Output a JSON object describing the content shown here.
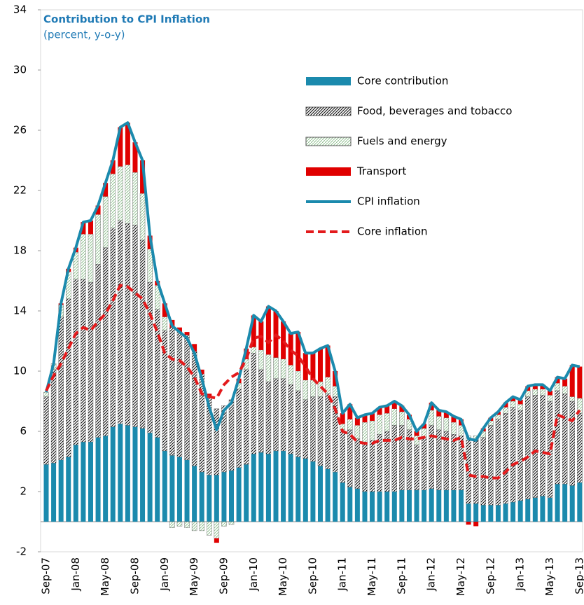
{
  "chart_data": {
    "type": "bar",
    "stacked": true,
    "title": "Contribution to CPI Inflation",
    "subtitle": "(percent, y-o-y)",
    "categories": [
      "Sep-07",
      null,
      null,
      null,
      "Jan-08",
      null,
      null,
      null,
      "May-08",
      null,
      null,
      null,
      "Sep-08",
      null,
      null,
      null,
      "Jan-09",
      null,
      null,
      null,
      "May-09",
      null,
      null,
      null,
      "Sep-09",
      null,
      null,
      null,
      "Jan-10",
      null,
      null,
      null,
      "May-10",
      null,
      null,
      null,
      "Sep-10",
      null,
      null,
      null,
      "Jan-11",
      null,
      null,
      null,
      "May-11",
      null,
      null,
      null,
      "Sep-11",
      null,
      null,
      null,
      "Jan-12",
      null,
      null,
      null,
      "May-12",
      null,
      null,
      null,
      "Sep-12",
      null,
      null,
      null,
      "Jan-13",
      null,
      null,
      null,
      "May-13",
      null,
      null,
      null,
      "Sep-13"
    ],
    "ylim": [
      -2,
      34
    ],
    "yticks": [
      -2,
      2,
      6,
      10,
      14,
      18,
      22,
      26,
      30,
      34
    ],
    "series": [
      {
        "name": "Core contribution",
        "kind": "bar",
        "color": "#1b8aad",
        "values": [
          3.8,
          3.9,
          4.1,
          4.3,
          5.1,
          5.3,
          5.3,
          5.6,
          5.7,
          6.3,
          6.5,
          6.4,
          6.3,
          6.2,
          5.9,
          5.6,
          4.7,
          4.4,
          4.3,
          4.1,
          3.7,
          3.3,
          3.1,
          3.1,
          3.3,
          3.4,
          3.6,
          3.8,
          4.5,
          4.6,
          4.5,
          4.7,
          4.7,
          4.5,
          4.3,
          4.2,
          4.0,
          3.7,
          3.5,
          3.3,
          2.6,
          2.3,
          2.2,
          2.0,
          2.0,
          2.0,
          2.0,
          2.0,
          2.1,
          2.1,
          2.1,
          2.1,
          2.2,
          2.1,
          2.1,
          2.1,
          2.1,
          1.2,
          1.2,
          1.1,
          1.1,
          1.1,
          1.2,
          1.3,
          1.4,
          1.5,
          1.6,
          1.7,
          1.6,
          2.5,
          2.5,
          2.4,
          2.6
        ]
      },
      {
        "name": "Food, beverages and tobacco",
        "kind": "bar",
        "color": "#000000",
        "pattern": "hatch",
        "values": [
          4.5,
          6.2,
          9.5,
          10.5,
          11.0,
          10.8,
          10.6,
          11.5,
          12.5,
          13.2,
          13.5,
          13.4,
          13.4,
          12.5,
          10.0,
          8.5,
          8.0,
          8.5,
          8.3,
          8.3,
          7.6,
          6.5,
          5.2,
          4.4,
          4.4,
          4.7,
          5.2,
          6.3,
          6.7,
          5.5,
          4.8,
          4.8,
          4.8,
          4.6,
          4.4,
          3.9,
          4.3,
          4.6,
          5.0,
          5.0,
          3.5,
          3.8,
          3.3,
          3.3,
          3.4,
          3.8,
          4.0,
          4.4,
          4.3,
          4.0,
          3.0,
          3.5,
          4.2,
          4.0,
          3.9,
          3.7,
          3.6,
          4.2,
          4.2,
          4.5,
          5.3,
          5.7,
          6.0,
          6.3,
          6.0,
          6.8,
          6.8,
          6.7,
          6.4,
          6.2,
          6.0,
          5.6,
          4.6
        ]
      },
      {
        "name": "Fuels and energy",
        "kind": "bar",
        "color": "#8fbf8f",
        "pattern": "dots",
        "values": [
          0.3,
          0.4,
          0.8,
          1.8,
          1.8,
          3.0,
          3.2,
          3.3,
          3.4,
          3.6,
          3.6,
          3.9,
          3.5,
          3.1,
          2.2,
          1.6,
          0.9,
          -0.4,
          -0.3,
          -0.4,
          -0.6,
          -0.6,
          -0.9,
          -1.1,
          -0.3,
          -0.2,
          0.4,
          0.7,
          0.4,
          1.3,
          1.8,
          1.4,
          1.3,
          1.3,
          1.3,
          1.3,
          1.1,
          1.0,
          1.1,
          0.7,
          0.4,
          0.7,
          0.9,
          1.3,
          1.3,
          1.3,
          1.2,
          1.1,
          0.9,
          0.7,
          0.6,
          0.6,
          1.0,
          0.9,
          0.9,
          0.8,
          0.7,
          0.3,
          0.3,
          0.4,
          0.3,
          0.3,
          0.4,
          0.4,
          0.4,
          0.4,
          0.4,
          0.4,
          0.4,
          0.5,
          0.5,
          0.3,
          1.0
        ]
      },
      {
        "name": "Transport",
        "kind": "bar",
        "color": "#e00000",
        "values": [
          0,
          0,
          0.1,
          0.2,
          0.3,
          0.8,
          0.9,
          0.6,
          0.9,
          0.9,
          2.6,
          2.8,
          2.0,
          2.2,
          0.9,
          0.3,
          0.9,
          0.5,
          0.3,
          0.2,
          0.5,
          0.3,
          0.2,
          -0.3,
          0,
          0,
          0.3,
          0.7,
          2.1,
          1.9,
          3.2,
          3.1,
          2.5,
          2.1,
          2.6,
          1.8,
          1.8,
          2.2,
          2.1,
          1.0,
          0.7,
          1.0,
          0.5,
          0.5,
          0.5,
          0.5,
          0.5,
          0.5,
          0.4,
          0.3,
          0.3,
          0.3,
          0.5,
          0.4,
          0.4,
          0.4,
          0.4,
          -0.2,
          -0.3,
          0.2,
          0.2,
          0.2,
          0.3,
          0.3,
          0.3,
          0.3,
          0.3,
          0.3,
          0.3,
          0.4,
          0.5,
          2.1,
          2.1
        ]
      },
      {
        "name": "CPI inflation",
        "kind": "line",
        "color": "#1b8aad",
        "values": [
          8.6,
          10.5,
          14.5,
          16.8,
          18.2,
          19.9,
          20.0,
          21.0,
          22.5,
          24.0,
          26.2,
          26.5,
          25.2,
          24.0,
          19.0,
          16.0,
          14.5,
          13.0,
          12.6,
          12.2,
          11.2,
          9.5,
          7.6,
          6.1,
          7.4,
          7.9,
          9.5,
          11.5,
          13.7,
          13.3,
          14.3,
          14.0,
          13.3,
          12.5,
          12.6,
          11.2,
          11.2,
          11.5,
          11.7,
          10.0,
          7.2,
          7.8,
          6.9,
          7.1,
          7.2,
          7.6,
          7.7,
          8.0,
          7.7,
          7.1,
          6.0,
          6.5,
          7.9,
          7.4,
          7.3,
          7.0,
          6.8,
          5.5,
          5.4,
          6.2,
          6.9,
          7.3,
          7.9,
          8.3,
          8.1,
          9.0,
          9.1,
          9.1,
          8.7,
          9.6,
          9.5,
          10.4,
          10.3
        ]
      },
      {
        "name": "Core inflation",
        "kind": "line",
        "dashed": true,
        "color": "#e31a1c",
        "values": [
          8.7,
          9.7,
          10.5,
          11.5,
          12.5,
          12.9,
          12.7,
          13.3,
          13.8,
          14.7,
          15.7,
          15.6,
          15.2,
          14.8,
          13.8,
          12.6,
          11.2,
          10.8,
          10.7,
          10.3,
          9.6,
          8.5,
          8.3,
          8.2,
          9.1,
          9.6,
          9.9,
          10.8,
          12.2,
          12.3,
          11.9,
          12.4,
          12.0,
          11.4,
          11.0,
          10.3,
          9.5,
          9.0,
          8.5,
          7.5,
          6.0,
          5.8,
          5.3,
          5.2,
          5.2,
          5.4,
          5.4,
          5.4,
          5.6,
          5.5,
          5.5,
          5.6,
          5.7,
          5.6,
          5.5,
          5.4,
          5.6,
          3.1,
          3.0,
          3.0,
          2.9,
          2.9,
          3.3,
          3.8,
          4.0,
          4.3,
          4.7,
          4.6,
          4.5,
          7.1,
          6.9,
          6.7,
          7.4
        ]
      }
    ]
  }
}
